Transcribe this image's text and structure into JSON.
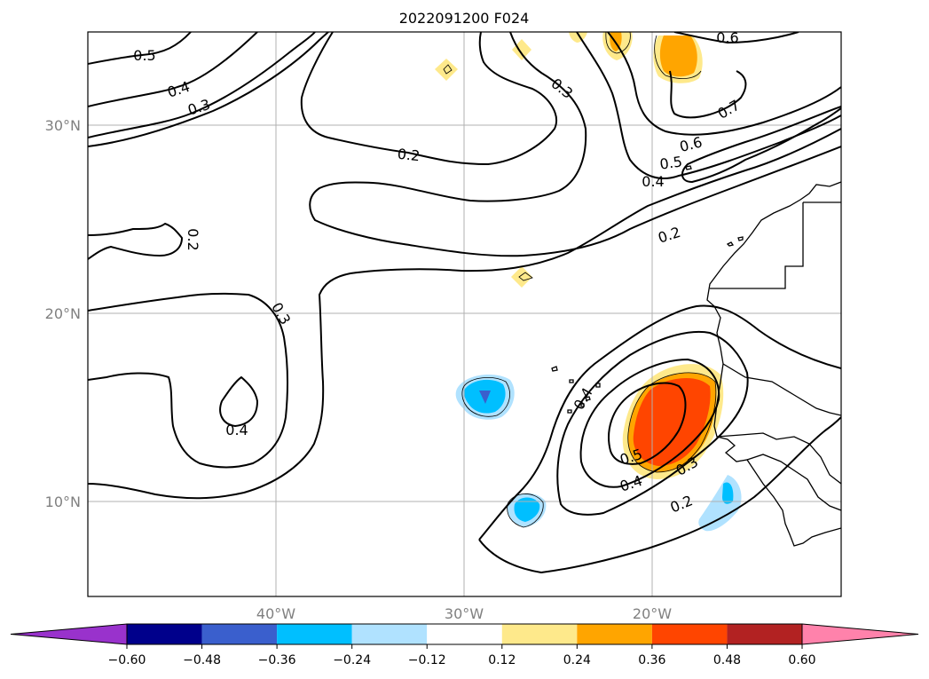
{
  "title": "2022091200 F024",
  "map": {
    "lat_labels": [
      "30°N",
      "20°N",
      "10°N"
    ],
    "lon_labels": [
      "40°W",
      "30°W",
      "20°W"
    ],
    "contour_labels": [
      "0.5",
      "0.4",
      "0.3",
      "0.2",
      "0.3",
      "0.6",
      "0.7",
      "0.6",
      "0.5",
      "0.4",
      "0.2",
      "0.2",
      "0.3",
      "0.4",
      "0.4",
      "0.5",
      "0.4",
      "0.3",
      "0.2"
    ]
  },
  "colorbar": {
    "tick_labels": [
      "−0.60",
      "−0.48",
      "−0.36",
      "−0.24",
      "−0.12",
      "0.12",
      "0.24",
      "0.36",
      "0.48",
      "0.60"
    ],
    "colors": [
      "#9932cc",
      "#00008b",
      "#3a5fcd",
      "#00bfff",
      "#b0e2ff",
      "#ffffff",
      "#fee98b",
      "#ffa500",
      "#ff4500",
      "#b22222",
      "#ff82ab"
    ]
  }
}
